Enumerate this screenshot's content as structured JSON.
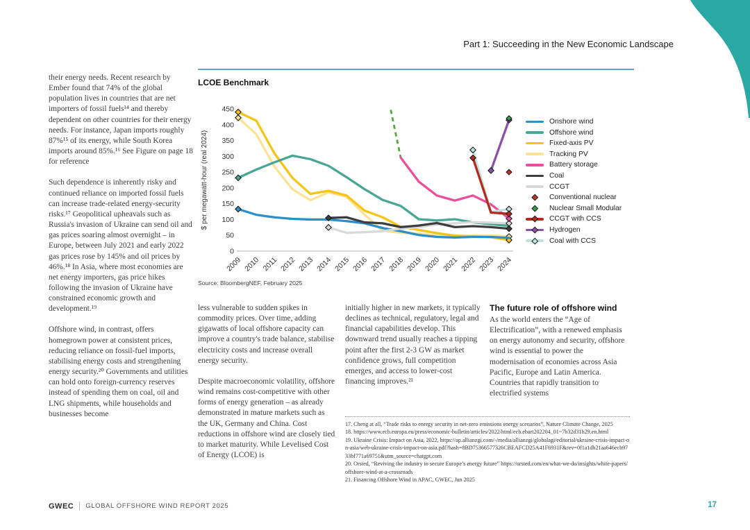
{
  "header": {
    "title": "Part 1: Succeeding in the New Economic Landscape"
  },
  "footer": {
    "brand": "GWEC",
    "report": "GLOBAL OFFSHORE WIND REPORT 2025",
    "page": "17"
  },
  "colors": {
    "accent_teal": "#2aa8a4",
    "header_rule": "#69a3c3"
  },
  "left_column": {
    "para1": "their energy needs. Recent research by Ember found that 74% of the global population lives in countries that are net importers of fossil fuels¹⁴ and thereby dependent on other countries for their energy needs. For instance, Japan imports roughly 87%¹⁵ of its energy, while South Korea imports around 85%.¹⁶ See Figure on page 18 for reference",
    "para2": "Such dependence is inherently risky and continued reliance on imported fossil fuels can increase trade-related energy-security risks.¹⁷ Geopolitical upheavals such as Russia's invasion of Ukraine can send oil and gas prices soaring almost overnight – in Europe, between July 2021 and early 2022 gas prices rose by 145% and oil prices by 46%.¹⁸ In Asia, where most economies are net energy importers, gas price hikes following the invasion of Ukraine have constrained economic growth and development.¹⁹",
    "para3": "Offshore wind, in contrast, offers homegrown power at consistent prices, reducing reliance on fossil-fuel imports, stabilising energy costs and strengthening energy security.²⁰ Governments and utilities can hold onto foreign-currency reserves instead of spending them on coal, oil and LNG shipments, while households and businesses become"
  },
  "columns": {
    "col2_para1": "less vulnerable to sudden spikes in commodity prices. Over time, adding gigawatts of local offshore capacity can improve a country's trade balance, stabilise electricity costs and increase overall energy security.",
    "col2_para2": "Despite macroeconomic volatility, offshore wind remains cost-competitive with other forms of energy generation – as already demonstrated in mature markets such as the UK, Germany and China. Cost reductions in offshore wind are closely tied to market maturity. While Levelised Cost of Energy (LCOE) is",
    "col3_para1": "initially higher in new markets, it typically declines as technical, regulatory, legal and financial capabilities develop. This downward trend usually reaches a tipping point after the first 2-3 GW as market confidence grows, full competition emerges, and access to lower-cost financing improves.²¹",
    "col4_heading": "The future role of offshore wind",
    "col4_para": "As the world enters the “Age of Electrification”, with a renewed emphasis on energy autonomy and security, offshore wind is essential to power the modernisation of economies across Asia Pacific, Europe and Latin America. Countries that rapidly transition to electrified systems"
  },
  "footnotes": [
    "17. Cheng at all, “Trade risks to energy security in net-zero emissions energy scenarios”, Nature Climate Change, 2025",
    "18. https://www.ecb.europa.eu/press/economic-bulletin/articles/2022/html/ecb.ebart202204_01~7b32d31b29.en.html",
    "19. Ukraine Crisis: Impact on Asia, 2022, https://ap.allianzgi.com/-/media/allianzgi/globalagi/editorial/ukraine-crisis-impact-on-asia/web-ukraine-crisis-impact-on-asia.pdf?hash=8BD75366577326CBEAFCD25A41F6931F&rev=0f1a1db21aa646ecb9733bf771a69751&utm_source=chatgpt.com",
    "20. Orsted, “Reviving the industry to secure Europe’s energy future” https://orsted.com/en/what-we-do/insights/white-papers/offshore-wind-at-a-crossroads",
    "21. Financing Offshore Wind in APAC, GWEC, Jun 2025"
  ],
  "chart_data": {
    "type": "line",
    "title": "LCOE Benchmark",
    "source": "Source: BloombergNEF, February 2025",
    "xlabel": "",
    "ylabel": "$ per megawatt-hour (real 2024)",
    "ylim": [
      0,
      450
    ],
    "yticks": [
      0,
      50,
      100,
      150,
      200,
      250,
      300,
      350,
      400,
      450
    ],
    "years": [
      2009,
      2010,
      2011,
      2012,
      2013,
      2014,
      2015,
      2016,
      2017,
      2018,
      2019,
      2020,
      2021,
      2022,
      2023,
      2024
    ],
    "grid": false,
    "legend_position": "right",
    "series": [
      {
        "name": "Onshore wind",
        "color": "#2d8fc9",
        "legend": "line",
        "type": "line",
        "start_year": 2009,
        "z": 3,
        "values": [
          133,
          115,
          107,
          102,
          100,
          100,
          95,
          88,
          73,
          63,
          51,
          45,
          43,
          45,
          45,
          42
        ],
        "marker_years": [
          2009
        ]
      },
      {
        "name": "Offshore wind",
        "color": "#48a794",
        "legend": "line",
        "type": "line",
        "start_year": 2009,
        "z": 4,
        "values": [
          232,
          258,
          281,
          302,
          291,
          270,
          234,
          196,
          162,
          143,
          101,
          97,
          101,
          91,
          85,
          80
        ],
        "marker_years": [
          2009
        ]
      },
      {
        "name": "Fixed-axis PV",
        "color": "#f6c414",
        "legend": "line",
        "type": "line",
        "start_year": 2009,
        "z": 2,
        "values": [
          440,
          413,
          310,
          232,
          181,
          191,
          176,
          128,
          107,
          77,
          67,
          57,
          49,
          47,
          44,
          35
        ],
        "marker_years": [
          2009,
          2024
        ]
      },
      {
        "name": "Tracking PV",
        "color": "#fbe393",
        "legend": "line",
        "type": "line",
        "start_year": 2009,
        "z": 1,
        "values": [
          422,
          370,
          268,
          196,
          161,
          186,
          172,
          115,
          65,
          58,
          56,
          50,
          47,
          49,
          50,
          46
        ],
        "marker_years": [
          2009,
          2024
        ]
      },
      {
        "name": "Battery storage",
        "color": "#e94f9c",
        "legend": "line",
        "type": "line",
        "start_year": 2018,
        "z": 7,
        "values": [
          296,
          220,
          176,
          160,
          176,
          148,
          103
        ],
        "marker_years": [
          2024
        ]
      },
      {
        "name": "Coal",
        "color": "#3d3d3d",
        "legend": "line",
        "type": "line",
        "start_year": 2014,
        "z": 6,
        "values": [
          105,
          107,
          91,
          88,
          76,
          81,
          89,
          76,
          79,
          76,
          71
        ],
        "marker_years": [
          2014,
          2024
        ]
      },
      {
        "name": "CCGT",
        "color": "#d9d9d9",
        "legend": "line",
        "type": "line",
        "start_year": 2014,
        "z": 5,
        "values": [
          75,
          58,
          60,
          63,
          71,
          76,
          84,
          88,
          92,
          90,
          88
        ],
        "marker_years": [
          2014,
          2024
        ]
      },
      {
        "name": "Conventional nuclear",
        "color": "#c13327",
        "legend": "marker",
        "type": "scatter",
        "z": 11,
        "points": [
          [
            2024,
            250
          ]
        ]
      },
      {
        "name": "Nuclear Small Modular",
        "color": "#2f9e44",
        "legend": "marker",
        "type": "scatter",
        "z": 12,
        "points": [
          [
            2024,
            420
          ]
        ]
      },
      {
        "name": "CCGT with CCS",
        "color": "#b42a1e",
        "legend": "line-marker",
        "type": "line",
        "start_year": 2022,
        "z": 9,
        "values": [
          295,
          122,
          118
        ],
        "marker_years": [
          2022,
          2024
        ]
      },
      {
        "name": "Hydrogen",
        "color": "#8d4fa8",
        "legend": "line-marker",
        "type": "line",
        "start_year": 2023,
        "z": 10,
        "values": [
          255,
          415
        ],
        "marker_years": [
          2023,
          2024
        ]
      },
      {
        "name": "Coal with CCS",
        "color": "#bfe3dd",
        "legend": "line-marker",
        "type": "line",
        "start_year": 2022,
        "z": 8,
        "values": [
          320,
          124,
          133
        ],
        "marker_years": [
          2022,
          2024
        ]
      }
    ],
    "lead_in_segment": {
      "color": "#55a83f",
      "dashed": true,
      "points": [
        [
          2017.45,
          447
        ],
        [
          2018,
          296
        ]
      ],
      "note": "dashed green segment descending into the Battery storage line"
    }
  }
}
